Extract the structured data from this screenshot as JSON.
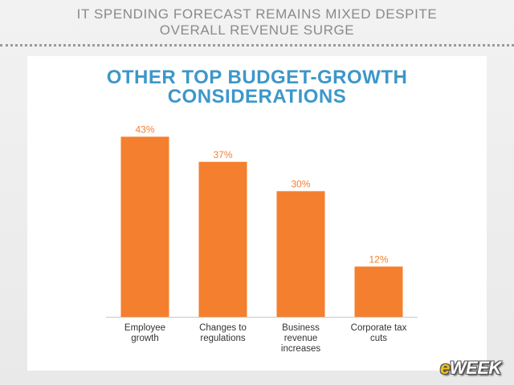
{
  "header": {
    "line1": "IT SPENDING FORECAST REMAINS MIXED DESPITE",
    "line2": "OVERALL REVENUE SURGE"
  },
  "chart_data": {
    "type": "bar",
    "title_lines": [
      "OTHER TOP BUDGET-GROWTH",
      "CONSIDERATIONS"
    ],
    "categories": [
      [
        "Employee",
        "growth"
      ],
      [
        "Changes to",
        "regulations"
      ],
      [
        "Business",
        "revenue",
        "increases"
      ],
      [
        "Corporate tax",
        "cuts"
      ]
    ],
    "values": [
      43,
      37,
      30,
      12
    ],
    "data_labels": [
      "43%",
      "37%",
      "30%",
      "12%"
    ],
    "ylim": [
      0,
      45
    ],
    "bar_color": "#f47f2f",
    "label_color": "#f47f2f",
    "grid": false
  },
  "logo": {
    "e": "e",
    "rest": "WEEK"
  }
}
